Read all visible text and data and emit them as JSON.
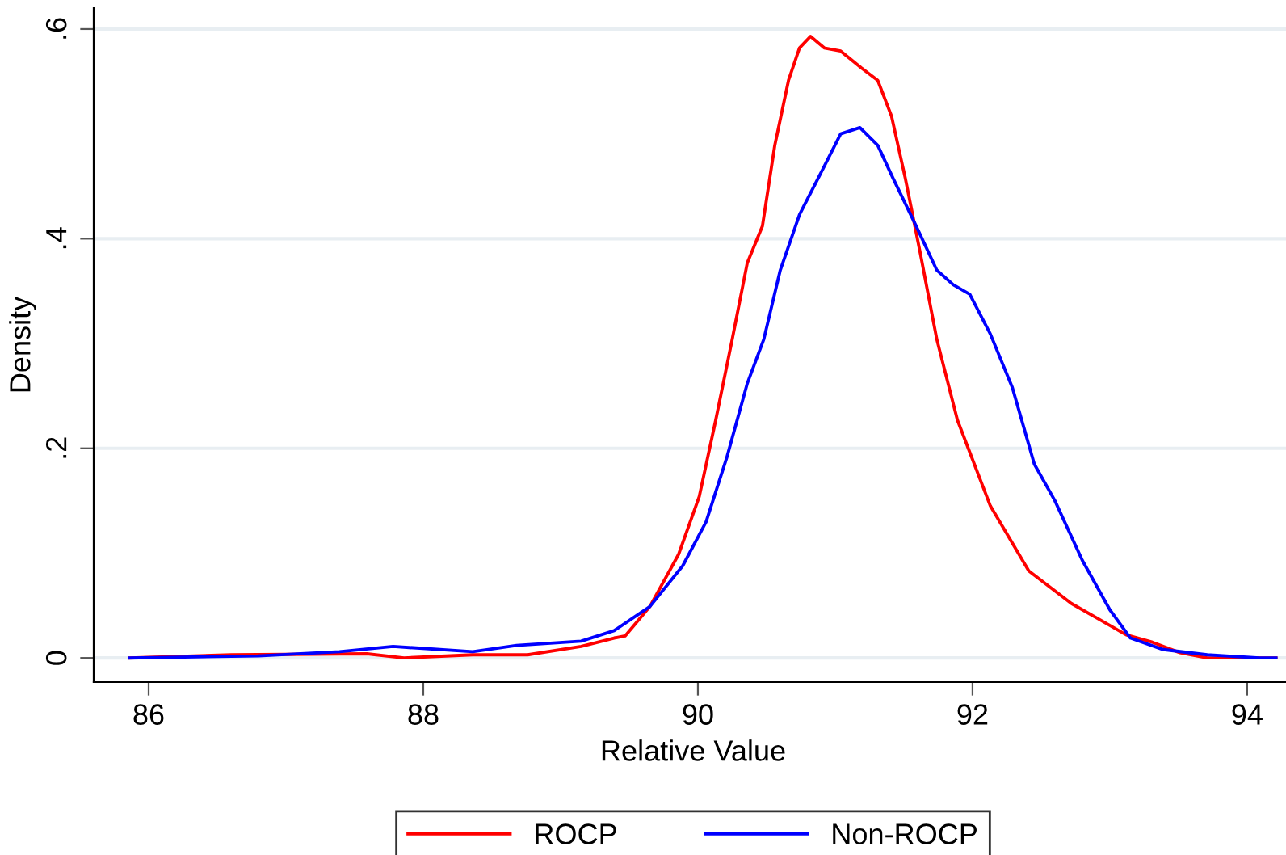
{
  "chart_data": {
    "type": "line",
    "xlabel": "Relative Value",
    "ylabel": "Density",
    "xlim": [
      85.6,
      94.33
    ],
    "ylim": [
      -0.023,
      0.62
    ],
    "xticks": [
      86,
      88,
      90,
      92,
      94
    ],
    "yticks": [
      {
        "value": 0,
        "label": "0"
      },
      {
        "value": 0.2,
        "label": ".2"
      },
      {
        "value": 0.4,
        "label": ".4"
      },
      {
        "value": 0.6,
        "label": ".6"
      }
    ],
    "grid": "y",
    "legend": "bottom",
    "marker": "none",
    "line_style": "solid",
    "series": [
      {
        "name": "ROCP",
        "color": "#ff0000",
        "x": [
          85.86,
          86.6,
          87.59,
          87.86,
          88.36,
          88.76,
          89.15,
          89.39,
          89.47,
          89.65,
          89.86,
          90.01,
          90.13,
          90.25,
          90.36,
          90.47,
          90.56,
          90.66,
          90.74,
          90.82,
          90.92,
          91.04,
          91.19,
          91.31,
          91.41,
          91.51,
          91.62,
          91.74,
          91.89,
          92.13,
          92.41,
          92.72,
          92.92,
          93.12,
          93.31,
          93.51,
          93.71,
          94.09,
          94.21
        ],
        "values": [
          0,
          0.003,
          0.004,
          0,
          0.003,
          0.003,
          0.011,
          0.019,
          0.021,
          0.049,
          0.099,
          0.154,
          0.227,
          0.304,
          0.377,
          0.412,
          0.489,
          0.551,
          0.582,
          0.593,
          0.582,
          0.579,
          0.563,
          0.551,
          0.517,
          0.458,
          0.386,
          0.304,
          0.227,
          0.145,
          0.083,
          0.052,
          0.037,
          0.022,
          0.015,
          0.005,
          0,
          0,
          0
        ]
      },
      {
        "name": "Non-ROCP",
        "color": "#0000ff",
        "x": [
          85.86,
          86.8,
          87.39,
          87.78,
          88.36,
          88.68,
          89.15,
          89.39,
          89.65,
          89.89,
          90.06,
          90.21,
          90.36,
          90.48,
          90.6,
          90.74,
          90.92,
          91.04,
          91.18,
          91.31,
          91.42,
          91.59,
          91.74,
          91.86,
          91.98,
          92.13,
          92.29,
          92.45,
          92.6,
          92.8,
          93.0,
          93.15,
          93.39,
          93.71,
          94.09,
          94.21
        ],
        "values": [
          0,
          0.002,
          0.006,
          0.011,
          0.006,
          0.012,
          0.016,
          0.026,
          0.049,
          0.088,
          0.13,
          0.191,
          0.262,
          0.304,
          0.37,
          0.423,
          0.469,
          0.5,
          0.506,
          0.489,
          0.458,
          0.412,
          0.37,
          0.356,
          0.347,
          0.309,
          0.258,
          0.185,
          0.15,
          0.093,
          0.046,
          0.019,
          0.008,
          0.003,
          0,
          0
        ]
      }
    ]
  }
}
